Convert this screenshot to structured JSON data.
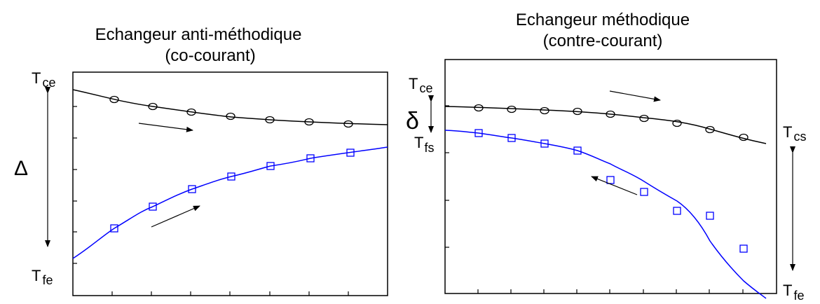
{
  "left_panel": {
    "title_line1": "Echangeur anti-méthodique",
    "title_line2": "(co-courant)",
    "label_top": {
      "main": "T",
      "sub": "ce"
    },
    "label_bottom": {
      "main": "T",
      "sub": "fe"
    },
    "delta_symbol": "Δ",
    "hot_curve": {
      "color": "#000000",
      "marker": "circle"
    },
    "cold_curve": {
      "color": "#0000ff",
      "marker": "square"
    }
  },
  "right_panel": {
    "title_line1": "Echangeur méthodique",
    "title_line2": "(contre-courant)",
    "label_top": {
      "main": "T",
      "sub": "ce"
    },
    "label_fs": {
      "main": "T",
      "sub": "fs"
    },
    "label_cs": {
      "main": "T",
      "sub": "cs"
    },
    "label_fe": {
      "main": "T",
      "sub": "fe"
    },
    "delta_symbol": "δ",
    "hot_curve": {
      "color": "#000000",
      "marker": "circle"
    },
    "cold_curve": {
      "color": "#0000ff",
      "marker": "square"
    }
  }
}
